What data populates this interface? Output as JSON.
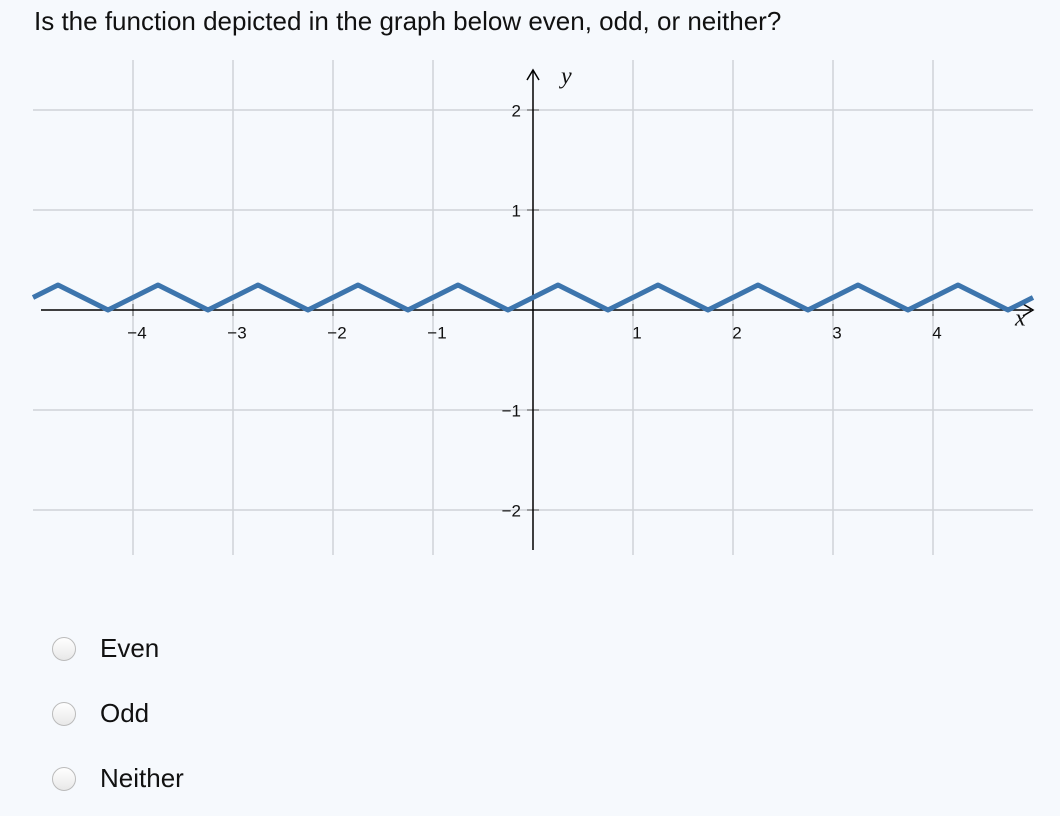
{
  "question": "Is the function depicted in the graph below even, odd, or neither?",
  "chart_data": {
    "type": "line",
    "x": [
      -5,
      -4.75,
      -4.25,
      -3.75,
      -3.25,
      -2.75,
      -2.25,
      -1.75,
      -1.25,
      -0.75,
      -0.25,
      0.25,
      0.75,
      1.25,
      1.75,
      2.25,
      2.75,
      3.25,
      3.75,
      4.25,
      4.75,
      5
    ],
    "values": [
      0.125,
      0.25,
      0,
      0.25,
      0,
      0.25,
      0,
      0.25,
      0,
      0.25,
      0,
      0.25,
      0,
      0.25,
      0,
      0.25,
      0,
      0.25,
      0,
      0.25,
      0,
      0.125
    ],
    "color": "#3d75ad",
    "x_label": "x",
    "y_label": "y",
    "xlim": [
      -5,
      5
    ],
    "ylim": [
      -2.45,
      2.5
    ],
    "xticks": [
      {
        "value": -4,
        "label": "−4"
      },
      {
        "value": -3,
        "label": "−3"
      },
      {
        "value": -2,
        "label": "−2"
      },
      {
        "value": -1,
        "label": "−1"
      },
      1,
      2,
      3,
      4
    ],
    "yticks": [
      {
        "value": -2,
        "label": "−2"
      },
      {
        "value": -1,
        "label": "−1"
      },
      1,
      2
    ],
    "grid": true
  },
  "options": [
    "Even",
    "Odd",
    "Neither"
  ]
}
